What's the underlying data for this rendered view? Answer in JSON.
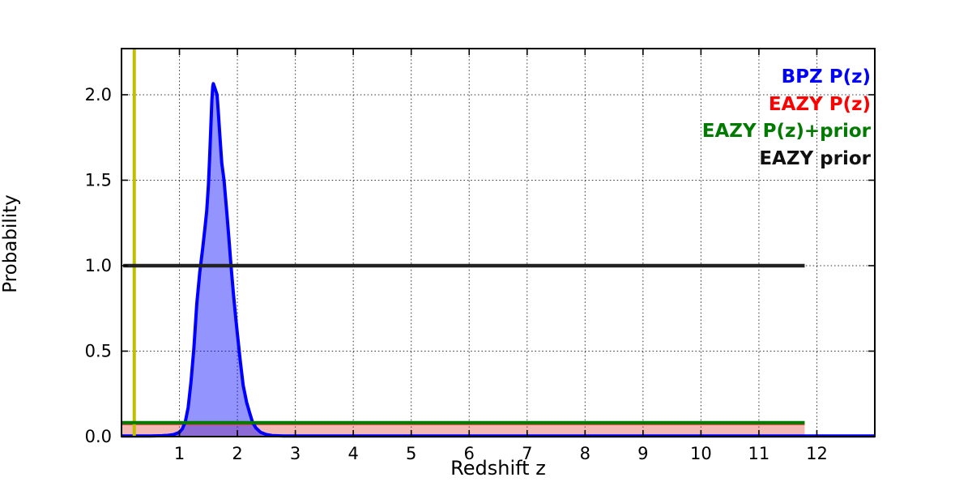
{
  "figure": {
    "background": "#ffffff",
    "kind": "matplotlib-style probability distribution plot"
  },
  "axes": {
    "xlabel": "Redshift z",
    "ylabel": "Probability",
    "xticks": [
      {
        "label": "1",
        "value": 1
      },
      {
        "label": "2",
        "value": 2
      },
      {
        "label": "3",
        "value": 3
      },
      {
        "label": "4",
        "value": 4
      },
      {
        "label": "5",
        "value": 5
      },
      {
        "label": "6",
        "value": 6
      },
      {
        "label": "7",
        "value": 7
      },
      {
        "label": "8",
        "value": 8
      },
      {
        "label": "9",
        "value": 9
      },
      {
        "label": "10",
        "value": 10
      },
      {
        "label": "11",
        "value": 11
      },
      {
        "label": "12",
        "value": 12
      }
    ],
    "yticks": [
      {
        "label": "0.0",
        "value": 0.0
      },
      {
        "label": "0.5",
        "value": 0.5
      },
      {
        "label": "1.0",
        "value": 1.0
      },
      {
        "label": "1.5",
        "value": 1.5
      },
      {
        "label": "2.0",
        "value": 2.0
      }
    ],
    "grid": "dotted"
  },
  "legend": {
    "items": [
      {
        "label": "BPZ P(z)",
        "color": "#0000ff"
      },
      {
        "label": "EAZY P(z)",
        "color": "#ff0000"
      },
      {
        "label": "EAZY P(z)+prior",
        "color": "#007a00"
      },
      {
        "label": "EAZY prior",
        "color": "#111111"
      }
    ]
  },
  "chart_data": {
    "type": "line",
    "title": "",
    "xlabel": "Redshift z",
    "ylabel": "Probability",
    "xlim": [
      0,
      13
    ],
    "ylim": [
      0,
      2.27
    ],
    "grid": true,
    "legend_position": "upper right",
    "vline": {
      "name": "z-marker",
      "x": 0.22,
      "color": "#bfbf00",
      "lw": 4
    },
    "series": [
      {
        "name": "EAZY P(z)",
        "color": "#e03424",
        "fill": "rgba(220,70,60,0.38)",
        "lw": 3,
        "layer": 1,
        "points": [
          [
            0.0,
            0.075
          ],
          [
            11.79,
            0.075
          ]
        ]
      },
      {
        "name": "BPZ P(z)",
        "color": "#0000ff",
        "fill": "rgba(0,0,255,0.42)",
        "lw": 4,
        "layer": 1,
        "points": [
          [
            0.0,
            0.004
          ],
          [
            0.5,
            0.004
          ],
          [
            0.7,
            0.005
          ],
          [
            0.8,
            0.007
          ],
          [
            0.9,
            0.012
          ],
          [
            1.0,
            0.025
          ],
          [
            1.05,
            0.045
          ],
          [
            1.1,
            0.085
          ],
          [
            1.15,
            0.17
          ],
          [
            1.2,
            0.32
          ],
          [
            1.25,
            0.52
          ],
          [
            1.3,
            0.78
          ],
          [
            1.35,
            0.96
          ],
          [
            1.4,
            1.1
          ],
          [
            1.44,
            1.22
          ],
          [
            1.47,
            1.32
          ],
          [
            1.5,
            1.47
          ],
          [
            1.52,
            1.62
          ],
          [
            1.54,
            1.8
          ],
          [
            1.56,
            1.97
          ],
          [
            1.575,
            2.05
          ],
          [
            1.585,
            2.065
          ],
          [
            1.6,
            2.05
          ],
          [
            1.63,
            2.02
          ],
          [
            1.65,
            2.0
          ],
          [
            1.67,
            1.9
          ],
          [
            1.7,
            1.75
          ],
          [
            1.73,
            1.6
          ],
          [
            1.77,
            1.5
          ],
          [
            1.82,
            1.3
          ],
          [
            1.86,
            1.13
          ],
          [
            1.89,
            1.0
          ],
          [
            1.93,
            0.84
          ],
          [
            1.97,
            0.7
          ],
          [
            2.0,
            0.6
          ],
          [
            2.05,
            0.44
          ],
          [
            2.1,
            0.3
          ],
          [
            2.16,
            0.2
          ],
          [
            2.22,
            0.13
          ],
          [
            2.26,
            0.085
          ],
          [
            2.32,
            0.05
          ],
          [
            2.4,
            0.025
          ],
          [
            2.5,
            0.012
          ],
          [
            2.6,
            0.006
          ],
          [
            2.8,
            0.004
          ],
          [
            3.0,
            0.004
          ],
          [
            13.0,
            0.004
          ]
        ]
      },
      {
        "name": "EAZY P(z)+prior",
        "color": "#007a00",
        "fill": null,
        "lw": 4,
        "layer": 2,
        "points": [
          [
            0.0,
            0.082
          ],
          [
            11.79,
            0.082
          ]
        ]
      },
      {
        "name": "EAZY prior",
        "color": "#222222",
        "fill": null,
        "lw": 4.5,
        "layer": 2,
        "points": [
          [
            0.03,
            1.0
          ],
          [
            11.79,
            1.0
          ]
        ]
      }
    ]
  }
}
